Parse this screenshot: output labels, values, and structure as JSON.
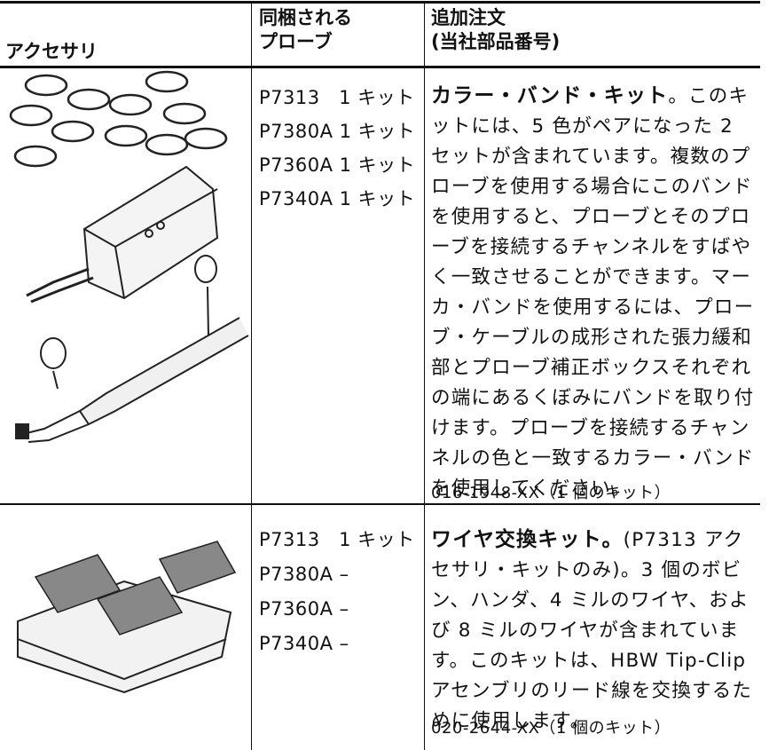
{
  "table": {
    "header": [
      [
        "アクセサリ"
      ],
      [
        "同梱される",
        "プローブ"
      ],
      [
        "追加注文",
        "(当社部品番号)"
      ]
    ],
    "rows": [
      {
        "probes": [
          "P7313　1 キット",
          "P7380A 1 キット",
          "P7360A 1 キット",
          "P7340A 1 キット"
        ],
        "title": "カラー・バンド・キット",
        "text": "。このキットには、5 色がペアになった 2 セットが含まれています。複数のプローブを使用する場合にこのバンドを使用すると、プローブとそのプローブを接続するチャンネルをすばやく一致させることができます。マーカ・バンドを使用するには、プローブ・ケーブルの成形された張力緩和部とプローブ補正ボックスそれぞれの端にあるくぼみにバンドを取り付けます。プローブを接続するチャンネルの色と一致するカラー・バンドを使用してください。",
        "part": "016-1948-XX（1 個のキット）"
      },
      {
        "probes": [
          "P7313　1 キット",
          "P7380A –",
          "P7360A –",
          "P7340A –"
        ],
        "title": "ワイヤ交換キット。",
        "text": "(P7313 アクセサリ・キットのみ)。3 個のボビン、ハンダ、4 ミルのワイヤ、および 8 ミルのワイヤが含まれています。このキットは、HBW Tip-Clip アセンブリのリード線を交換するために使用します。",
        "part": "020-2644-XX（1 個のキット）"
      }
    ]
  }
}
